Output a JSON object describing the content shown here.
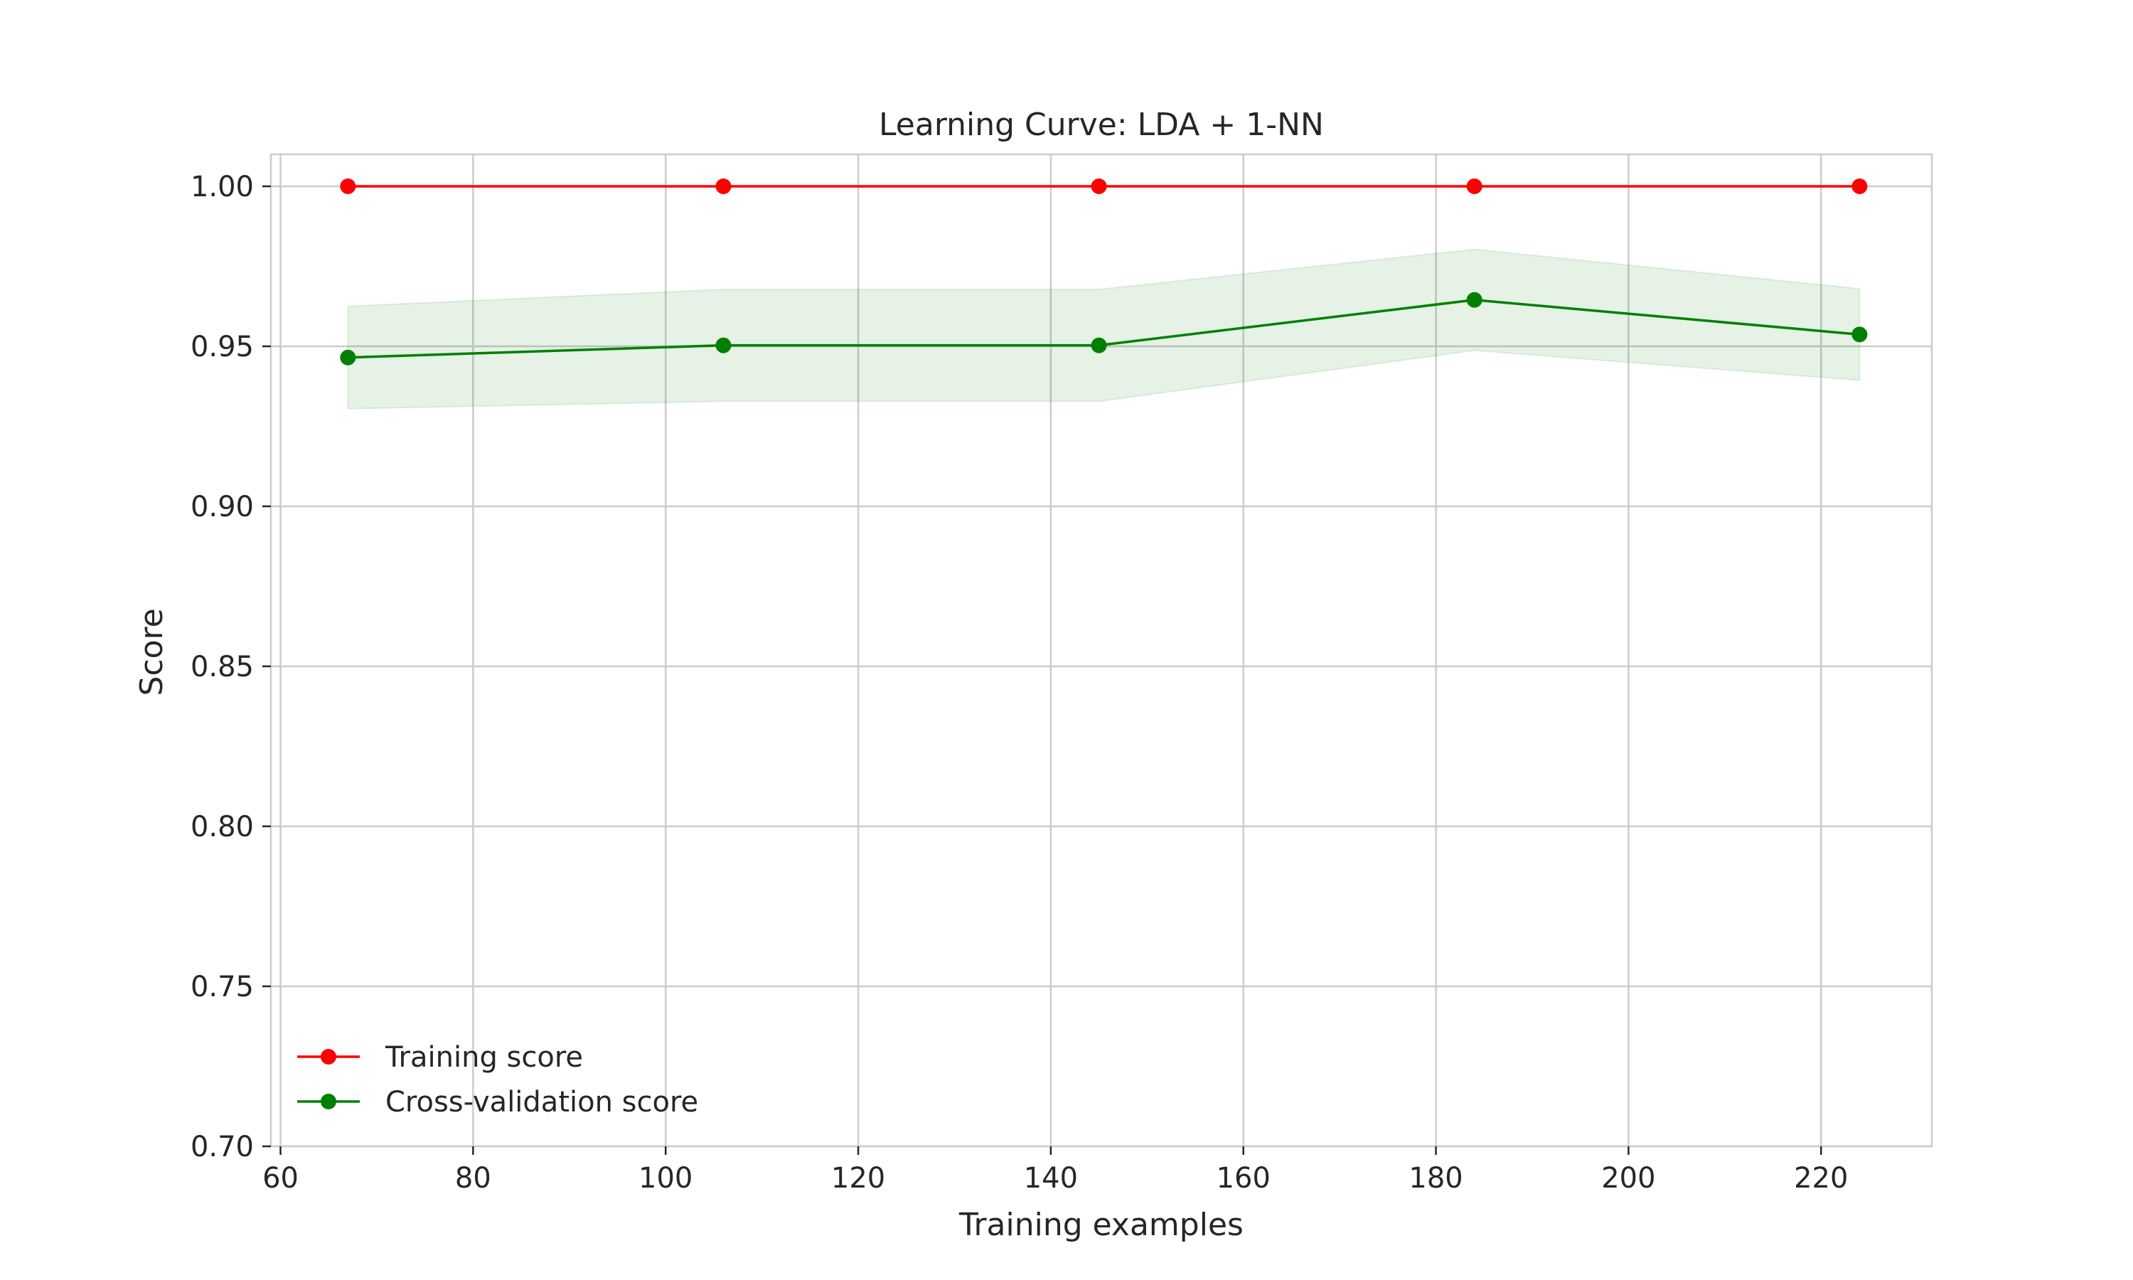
{
  "chart_data": {
    "type": "line",
    "title": "Learning Curve: LDA + 1-NN",
    "xlabel": "Training examples",
    "ylabel": "Score",
    "xlim": [
      59,
      231.5
    ],
    "ylim": [
      0.7,
      1.01
    ],
    "xticks": [
      60,
      80,
      100,
      120,
      140,
      160,
      180,
      200,
      220
    ],
    "xtick_labels": [
      "60",
      "80",
      "100",
      "120",
      "140",
      "160",
      "180",
      "200",
      "220"
    ],
    "yticks": [
      0.7,
      0.75,
      0.8,
      0.85,
      0.9,
      0.95,
      1.0
    ],
    "ytick_labels": [
      "0.70",
      "0.75",
      "0.80",
      "0.85",
      "0.90",
      "0.95",
      "1.00"
    ],
    "grid": true,
    "legend_position": "lower-left",
    "x": [
      67,
      106,
      145,
      184,
      224
    ],
    "series": [
      {
        "name": "Training score",
        "color": "#ff0000",
        "values": [
          1.0,
          1.0,
          1.0,
          1.0,
          1.0
        ]
      },
      {
        "name": "Cross-validation score",
        "color": "#008000",
        "values": [
          0.9465,
          0.9503,
          0.9503,
          0.9645,
          0.9537
        ],
        "band_lower": [
          0.9305,
          0.9328,
          0.9328,
          0.9487,
          0.9394
        ],
        "band_upper": [
          0.9625,
          0.9678,
          0.9678,
          0.9803,
          0.968
        ],
        "band_color": "#008000"
      }
    ]
  }
}
